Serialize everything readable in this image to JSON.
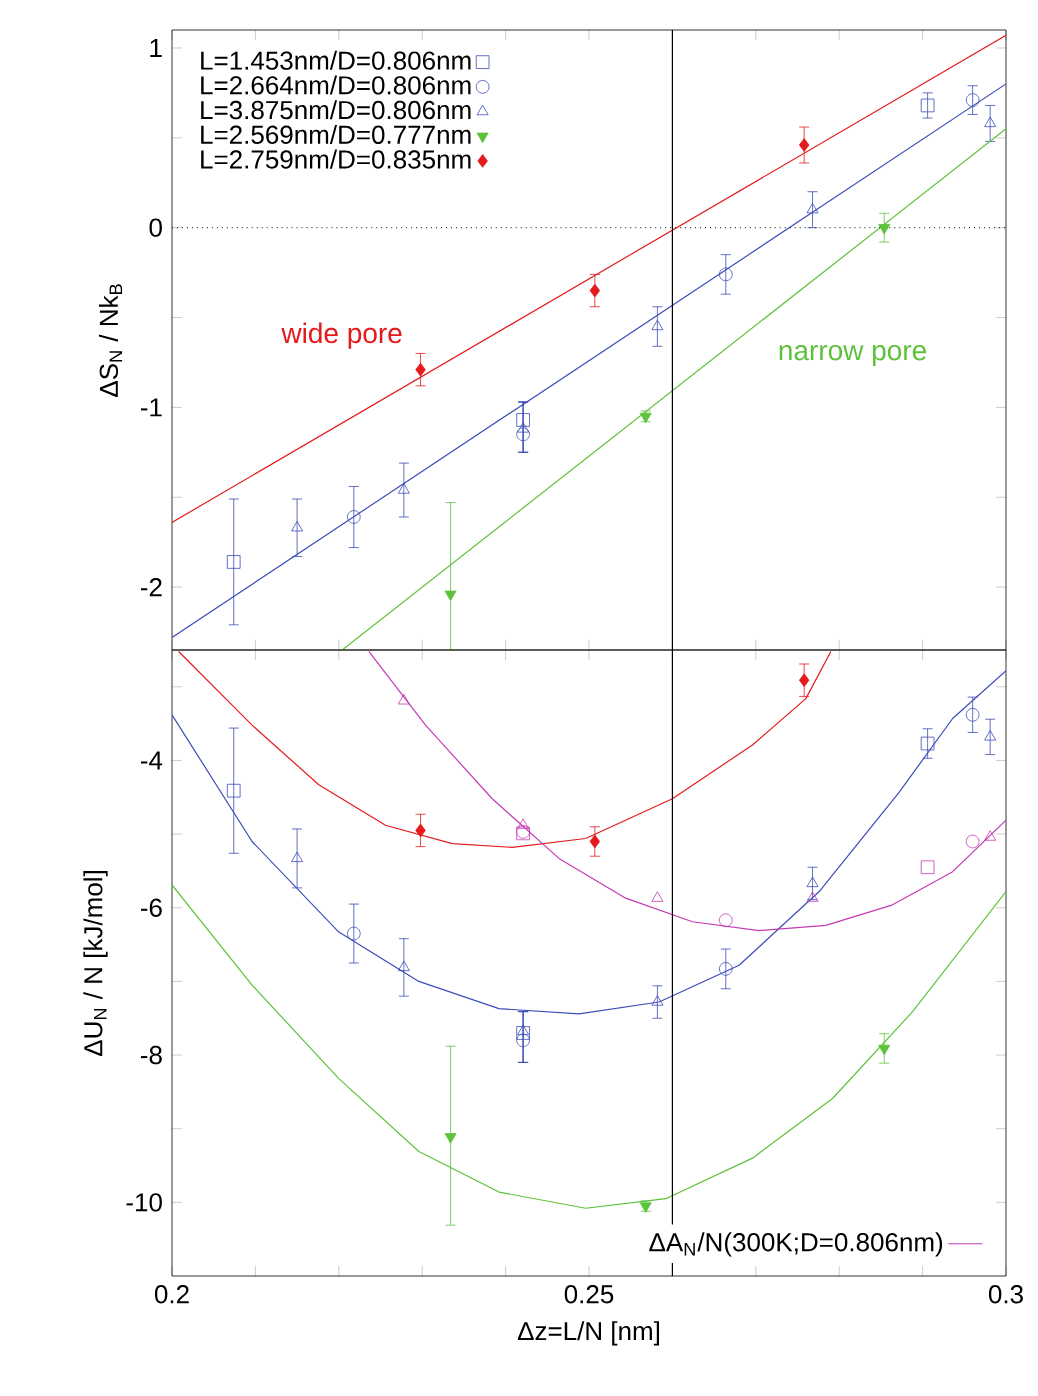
{
  "chart_data": [
    {
      "type": "scatter",
      "ylabel": "ΔS$_{N}$ / Nk$_{B}$",
      "xlim": [
        0.2,
        0.3
      ],
      "ylim": [
        -2.35,
        1.1
      ],
      "xticks": [
        0.2,
        {
          "value": 0.21,
          "label": null
        },
        {
          "value": 0.22,
          "label": null
        },
        {
          "value": 0.23,
          "label": null
        },
        {
          "value": 0.24,
          "label": null
        },
        0.25,
        {
          "value": 0.26,
          "label": null
        },
        {
          "value": 0.27,
          "label": null
        },
        {
          "value": 0.28,
          "label": null
        },
        {
          "value": 0.29,
          "label": null
        },
        0.3
      ],
      "yticks": [
        -2,
        {
          "value": -1.5,
          "label": null
        },
        -1,
        {
          "value": -0.5,
          "label": null
        },
        0,
        {
          "value": 0.5,
          "label": null
        },
        1
      ],
      "tick_labels": "y",
      "legend": "top left",
      "grid": false,
      "series": [
        {
          "name": "L=1.453nm/D=0.806nm",
          "color": "#3b4cb8",
          "marker": "square",
          "x": [
            0.2074,
            0.2421,
            0.2906
          ],
          "values": [
            -1.86,
            -1.07,
            0.68
          ],
          "errors": [
            0.35,
            [
              -1.25,
              -0.97
            ],
            0.07
          ]
        },
        {
          "name": "L=2.664nm/D=0.806nm",
          "color": "#3b4cb8",
          "marker": "circle",
          "x": [
            0.2218,
            0.2421,
            0.2664,
            0.296
          ],
          "values": [
            -1.61,
            -1.15,
            -0.26,
            0.71
          ],
          "errors": [
            0.17,
            [
              -1.25,
              -0.97
            ],
            0.11,
            0.08
          ]
        },
        {
          "name": "L=3.875nm/D=0.806nm",
          "color": "#3b4cb8",
          "marker": "triangle",
          "x": [
            0.215,
            0.2278,
            0.2421,
            0.2582,
            0.2768,
            0.2981
          ],
          "values": [
            -1.67,
            -1.46,
            -1.12,
            -0.55,
            0.1,
            0.58
          ],
          "errors": [
            0.16,
            0.15,
            [
              -1.25,
              -0.97
            ],
            0.11,
            0.1,
            0.1
          ]
        },
        {
          "name": "L=2.569nm/D=0.777nm",
          "color": "#5cc23a",
          "marker": "triangle-down",
          "x": [
            0.2334,
            0.2568,
            0.2854
          ],
          "values": [
            -2.04,
            -1.05,
            0.0
          ],
          "errors": [
            [
              -2.35,
              -1.53
            ],
            0.03,
            0.08
          ]
        },
        {
          "name": "L=2.759nm/D=0.835nm",
          "color": "#e41a1c",
          "marker": "diamond",
          "x": [
            0.2298,
            0.2507,
            0.2758
          ],
          "values": [
            -0.79,
            -0.35,
            0.46
          ],
          "errors": [
            0.09,
            0.09,
            0.1
          ]
        },
        {
          "type": "line",
          "color": "#e41a1c",
          "marker": "none",
          "x": [
            0.2,
            0.3
          ],
          "values": [
            -1.64,
            1.07
          ]
        },
        {
          "type": "line",
          "color": "#3b4cb8",
          "marker": "none",
          "x": [
            0.2,
            0.3
          ],
          "values": [
            -2.28,
            0.8
          ]
        },
        {
          "type": "line",
          "color": "#5cc23a",
          "marker": "none",
          "x": [
            0.2204,
            0.3
          ],
          "values": [
            -2.35,
            0.55
          ]
        }
      ],
      "ref_lines": [
        {
          "axis": "x",
          "value": 0.26,
          "color": "#000000",
          "line_style": "solid"
        },
        {
          "axis": "y",
          "value": 0,
          "color": "#000000",
          "line_style": "dotted"
        }
      ],
      "annotations": [
        "wide pore",
        "narrow pore"
      ]
    },
    {
      "type": "scatter",
      "xlabel": "Δz=L/N [nm]",
      "ylabel": "ΔU$_{N}$ / N [kJ/mol]",
      "xlim": [
        0.2,
        0.3
      ],
      "ylim": [
        -11,
        -2.5
      ],
      "xticks": [
        0.2,
        {
          "value": 0.21,
          "label": null
        },
        {
          "value": 0.22,
          "label": null
        },
        {
          "value": 0.23,
          "label": null
        },
        {
          "value": 0.24,
          "label": null
        },
        0.25,
        {
          "value": 0.26,
          "label": null
        },
        {
          "value": 0.27,
          "label": null
        },
        {
          "value": 0.28,
          "label": null
        },
        {
          "value": 0.29,
          "label": null
        },
        0.3
      ],
      "yticks": [
        -10,
        {
          "value": -9,
          "label": null
        },
        -8,
        {
          "value": -7,
          "label": null
        },
        -6,
        {
          "value": -5,
          "label": null
        },
        -4,
        {
          "value": -3,
          "label": null
        }
      ],
      "legend": "bottom right",
      "grid": false,
      "series": [
        {
          "color": "#3b4cb8",
          "marker": "square",
          "x": [
            0.2074,
            0.2421,
            0.2906
          ],
          "values": [
            -4.41,
            -7.7,
            -3.77
          ],
          "errors": [
            0.85,
            [
              -8.1,
              -7.41
            ],
            0.2
          ]
        },
        {
          "color": "#3b4cb8",
          "marker": "circle",
          "x": [
            0.2218,
            0.2421,
            0.2664,
            0.296
          ],
          "values": [
            -6.35,
            -7.8,
            -6.83,
            -3.38
          ],
          "errors": [
            0.4,
            [
              -8.1,
              -7.41
            ],
            0.27,
            0.24
          ]
        },
        {
          "color": "#3b4cb8",
          "marker": "triangle",
          "x": [
            0.215,
            0.2278,
            0.2421,
            0.2582,
            0.2768,
            0.2981
          ],
          "values": [
            -5.33,
            -6.81,
            -7.68,
            -7.28,
            -5.67,
            -3.68
          ],
          "errors": [
            0.4,
            0.39,
            [
              -8.1,
              -7.41
            ],
            0.22,
            0.22,
            0.24
          ]
        },
        {
          "color": "#5cc23a",
          "marker": "triangle-down",
          "x": [
            0.2334,
            0.2568,
            0.2854
          ],
          "values": [
            -9.11,
            -10.05,
            -7.91
          ],
          "errors": [
            [
              -10.31,
              -7.88
            ],
            0.07,
            0.2
          ]
        },
        {
          "color": "#e41a1c",
          "marker": "diamond",
          "x": [
            0.2298,
            0.2507,
            0.2758
          ],
          "values": [
            -4.95,
            -5.1,
            -2.91
          ],
          "errors": [
            0.22,
            0.2,
            0.22
          ]
        },
        {
          "color": "#c33bb3",
          "marker": "triangle",
          "x": [
            0.2278,
            0.2421,
            0.2582,
            0.2768,
            0.2981
          ],
          "values": [
            -3.19,
            -4.88,
            -5.87,
            -5.87,
            -5.04
          ]
        },
        {
          "color": "#c33bb3",
          "marker": "square",
          "x": [
            0.2421,
            0.2906
          ],
          "values": [
            -4.99,
            -5.45
          ]
        },
        {
          "color": "#c33bb3",
          "marker": "circle",
          "x": [
            0.2421,
            0.2664,
            0.296
          ],
          "values": [
            -4.97,
            -6.17,
            -5.1
          ]
        },
        {
          "type": "line",
          "color": "#e41a1c",
          "marker": "none",
          "x": [
            0.2008,
            0.2096,
            0.2176,
            0.2256,
            0.2336,
            0.2408,
            0.2496,
            0.26,
            0.2696,
            0.276,
            0.279
          ],
          "values": [
            -2.52,
            -3.52,
            -4.33,
            -4.88,
            -5.13,
            -5.18,
            -5.06,
            -4.52,
            -3.79,
            -3.16,
            -2.52
          ]
        },
        {
          "type": "line",
          "color": "#3b4cb8",
          "marker": "none",
          "x": [
            0.2,
            0.2096,
            0.22,
            0.2296,
            0.2392,
            0.2488,
            0.2584,
            0.268,
            0.2776,
            0.2872,
            0.2936,
            0.3
          ],
          "values": [
            -3.38,
            -5.1,
            -6.33,
            -7.0,
            -7.37,
            -7.44,
            -7.28,
            -6.78,
            -5.78,
            -4.43,
            -3.43,
            -2.78
          ]
        },
        {
          "type": "line",
          "color": "#5cc23a",
          "marker": "none",
          "x": [
            0.2,
            0.2096,
            0.22,
            0.2296,
            0.2392,
            0.2496,
            0.2592,
            0.2696,
            0.2792,
            0.2888,
            0.3
          ],
          "values": [
            -5.69,
            -7.05,
            -8.32,
            -9.31,
            -9.86,
            -10.08,
            -9.95,
            -9.4,
            -8.59,
            -7.41,
            -5.78
          ]
        },
        {
          "type": "line",
          "name": "ΔA$_{N}$/N(300K;D=0.806nm)",
          "color": "#c33bb3",
          "marker": "none",
          "x": [
            0.2236,
            0.2304,
            0.2384,
            0.2464,
            0.2544,
            0.2624,
            0.2704,
            0.2784,
            0.2864,
            0.2936,
            0.3
          ],
          "values": [
            -2.52,
            -3.52,
            -4.52,
            -5.33,
            -5.87,
            -6.19,
            -6.31,
            -6.24,
            -5.96,
            -5.51,
            -4.81
          ]
        }
      ],
      "ref_lines": [
        {
          "axis": "x",
          "value": 0.26,
          "color": "#000000",
          "line_style": "solid"
        }
      ]
    }
  ]
}
